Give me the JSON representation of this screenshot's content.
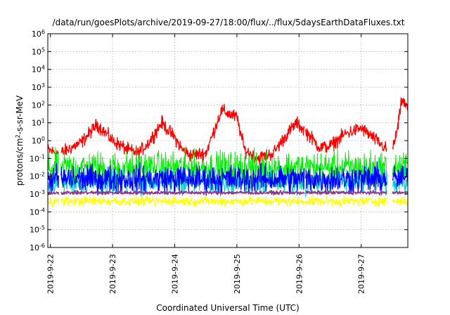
{
  "chart_data": {
    "type": "line",
    "title": "/data/run/goesPlots/archive/2019-09-27/18:00/flux/../flux/5daysEarthDataFluxes.txt",
    "xlabel": "Coordinated Universal Time (UTC)",
    "ylabel": "protons/cm²-s-sr-MeV",
    "ylabel_parts": {
      "base": "protons/cm",
      "sup": "2",
      "rest": "-s-sr-MeV"
    },
    "y_scale": "log",
    "ylim": [
      1e-06,
      1000000.0
    ],
    "y_ticks": [
      {
        "value": 1e-06,
        "base": "10",
        "exp": "-6"
      },
      {
        "value": 1e-05,
        "base": "10",
        "exp": "-5"
      },
      {
        "value": 0.0001,
        "base": "10",
        "exp": "-4"
      },
      {
        "value": 0.001,
        "base": "10",
        "exp": "-3"
      },
      {
        "value": 0.01,
        "base": "10",
        "exp": "-2"
      },
      {
        "value": 0.1,
        "base": "10",
        "exp": "-1"
      },
      {
        "value": 1,
        "base": "10",
        "exp": "0"
      },
      {
        "value": 10.0,
        "base": "10",
        "exp": "1"
      },
      {
        "value": 100.0,
        "base": "10",
        "exp": "2"
      },
      {
        "value": 1000.0,
        "base": "10",
        "exp": "3"
      },
      {
        "value": 10000.0,
        "base": "10",
        "exp": "4"
      },
      {
        "value": 100000.0,
        "base": "10",
        "exp": "5"
      },
      {
        "value": 1000000.0,
        "base": "10",
        "exp": "6"
      }
    ],
    "xlim": [
      "2019-09-21 23:00",
      "2019-09-27 18:00"
    ],
    "x_ticks": [
      {
        "value": "2019-09-22 00:00",
        "label": "2019-9-22"
      },
      {
        "value": "2019-09-23 00:00",
        "label": "2019-9-23"
      },
      {
        "value": "2019-09-24 00:00",
        "label": "2019-9-24"
      },
      {
        "value": "2019-09-25 00:00",
        "label": "2019-9-25"
      },
      {
        "value": "2019-09-26 00:00",
        "label": "2019-9-26"
      },
      {
        "value": "2019-09-27 00:00",
        "label": "2019-9-27"
      }
    ],
    "grid": true,
    "legend": "none",
    "data_gaps": [
      [
        "2019-09-22 03:12",
        "2019-09-22 04:00"
      ],
      [
        "2019-09-26 02:00",
        "2019-09-26 02:20"
      ],
      [
        "2019-09-27 10:00",
        "2019-09-27 12:00"
      ]
    ],
    "series": [
      {
        "color": "#ff0000",
        "x": [
          "2019-09-21 23:00",
          "2019-09-22 03:00",
          "2019-09-22 04:00",
          "2019-09-22 12:00",
          "2019-09-22 18:00",
          "2019-09-22 21:00",
          "2019-09-23 00:00",
          "2019-09-23 06:00",
          "2019-09-23 10:00",
          "2019-09-23 14:00",
          "2019-09-23 19:00",
          "2019-09-24 00:00",
          "2019-09-24 03:00",
          "2019-09-24 06:00",
          "2019-09-24 12:00",
          "2019-09-24 15:00",
          "2019-09-24 18:00",
          "2019-09-25 00:00",
          "2019-09-25 03:00",
          "2019-09-25 08:00",
          "2019-09-25 14:00",
          "2019-09-25 19:00",
          "2019-09-25 23:00",
          "2019-09-26 04:00",
          "2019-09-26 08:00",
          "2019-09-26 12:00",
          "2019-09-26 18:00",
          "2019-09-27 00:00",
          "2019-09-27 06:00",
          "2019-09-27 10:00",
          "2019-09-27 12:00",
          "2019-09-27 14:00",
          "2019-09-27 15:40",
          "2019-09-27 18:00"
        ],
        "values": [
          0.3,
          0.2,
          0.2,
          0.8,
          8,
          3,
          1,
          0.3,
          0.2,
          0.8,
          10,
          1.5,
          0.3,
          0.15,
          0.2,
          3,
          50,
          20,
          0.3,
          0.1,
          0.2,
          2,
          10,
          2,
          0.4,
          0.5,
          2.5,
          5,
          1,
          0.3,
          0.3,
          4,
          200,
          60
        ]
      },
      {
        "color": "#00ee00",
        "x": [
          "2019-09-21 23:00",
          "2019-09-22 03:12",
          "2019-09-22 04:00",
          "2019-09-26 02:00",
          "2019-09-26 02:20",
          "2019-09-27 10:00",
          "2019-09-27 12:00",
          "2019-09-27 18:00"
        ],
        "values": [
          0.03,
          0.03,
          0.03,
          0.03,
          0.03,
          0.03,
          0.03,
          0.03
        ]
      },
      {
        "color": "#00cccc",
        "x": [
          "2019-09-21 23:00",
          "2019-09-22 03:12",
          "2019-09-22 04:00",
          "2019-09-26 02:00",
          "2019-09-26 02:20",
          "2019-09-27 10:00",
          "2019-09-27 12:00",
          "2019-09-27 18:00"
        ],
        "values": [
          0.005,
          0.005,
          0.005,
          0.005,
          0.005,
          0.005,
          0.005,
          0.005
        ]
      },
      {
        "color": "#0000ff",
        "x": [
          "2019-09-21 23:00",
          "2019-09-22 03:12",
          "2019-09-22 04:00",
          "2019-09-26 02:00",
          "2019-09-26 02:20",
          "2019-09-27 10:00",
          "2019-09-27 12:00",
          "2019-09-27 18:00"
        ],
        "values": [
          0.007,
          0.007,
          0.007,
          0.007,
          0.007,
          0.007,
          0.007,
          0.007
        ]
      },
      {
        "color": "#8b3a8b",
        "x": [
          "2019-09-21 23:00",
          "2019-09-22 03:12",
          "2019-09-22 04:00",
          "2019-09-26 02:00",
          "2019-09-26 02:20",
          "2019-09-27 10:00",
          "2019-09-27 12:00",
          "2019-09-27 18:00"
        ],
        "values": [
          0.0012,
          0.0012,
          0.0012,
          0.0012,
          0.0012,
          0.0012,
          0.0012,
          0.0012
        ]
      },
      {
        "color": "#ffff00",
        "x": [
          "2019-09-21 23:00",
          "2019-09-22 03:12",
          "2019-09-22 04:00",
          "2019-09-26 02:00",
          "2019-09-26 02:20",
          "2019-09-27 10:00",
          "2019-09-27 12:00",
          "2019-09-27 18:00"
        ],
        "values": [
          0.0004,
          0.0004,
          0.0004,
          0.0004,
          0.0004,
          0.0004,
          0.0004,
          0.0004
        ]
      }
    ]
  }
}
